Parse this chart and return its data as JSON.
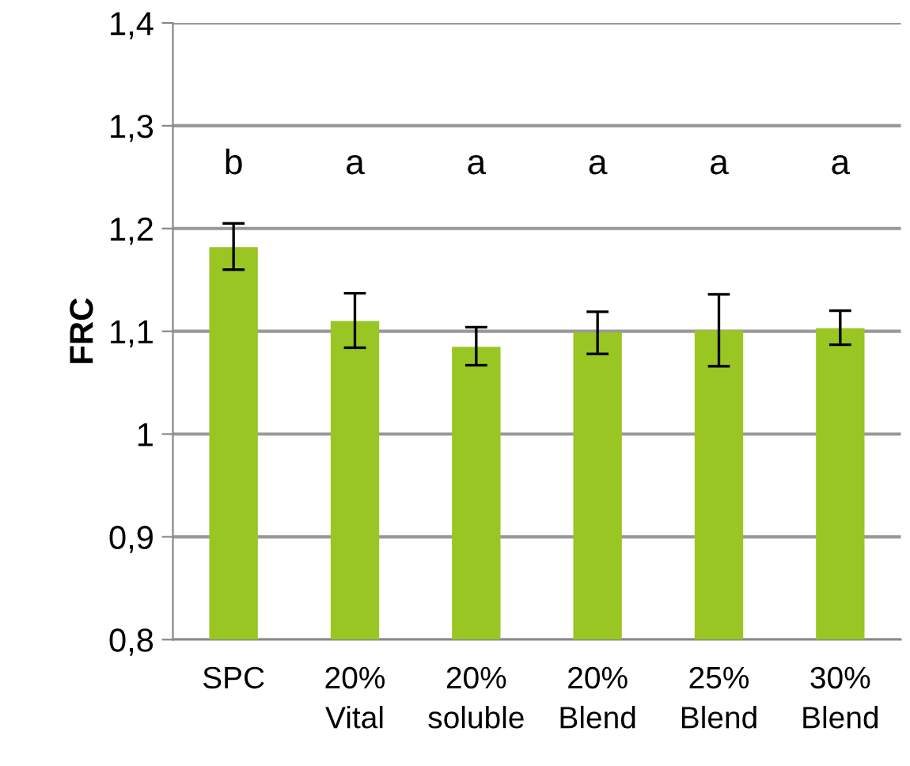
{
  "chart_data": {
    "type": "bar",
    "ylabel": "FRC",
    "categories": [
      "SPC",
      "20%\nVital",
      "20%\nsoluble",
      "20%\nBlend",
      "25%\nBlend",
      "30%\nBlend"
    ],
    "values": [
      1.182,
      1.11,
      1.085,
      1.099,
      1.101,
      1.103
    ],
    "errors": [
      [
        1.16,
        1.205
      ],
      [
        1.084,
        1.137
      ],
      [
        1.067,
        1.104
      ],
      [
        1.078,
        1.119
      ],
      [
        1.066,
        1.136
      ],
      [
        1.087,
        1.12
      ]
    ],
    "color": "#9ac623",
    "ylim": [
      0.8,
      1.4
    ],
    "yticks": [
      {
        "value": 0.8,
        "label": "0,8"
      },
      {
        "value": 0.9,
        "label": "0,9"
      },
      {
        "value": 1,
        "label": "1"
      },
      {
        "value": 1.1,
        "label": "1,1"
      },
      {
        "value": 1.2,
        "label": "1,2"
      },
      {
        "value": 1.3,
        "label": "1,3"
      },
      {
        "value": 1.4,
        "label": "1,4"
      }
    ],
    "grid": "y",
    "annotations": [
      "b",
      "a",
      "a",
      "a",
      "a",
      "a"
    ]
  }
}
